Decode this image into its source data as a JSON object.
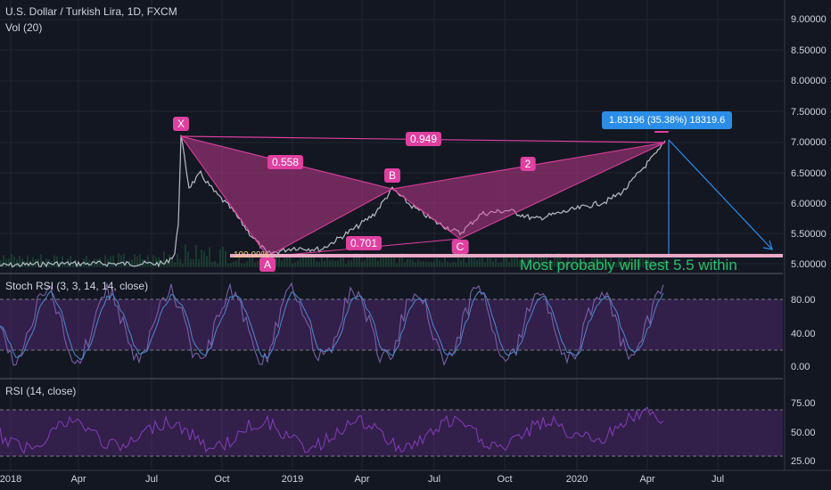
{
  "header": {
    "title": "U.S. Dollar / Turkish Lira, 1D, FXCM",
    "volume": "Vol (20)"
  },
  "panes": {
    "stoch_title": "Stoch RSI (3, 3, 14, 14, close)",
    "rsi_title": "RSI (14, close)"
  },
  "axes": {
    "price_ticks": [
      "9.00000",
      "8.50000",
      "8.00000",
      "7.50000",
      "7.00000",
      "6.50000",
      "6.00000",
      "5.50000",
      "5.00000"
    ],
    "stoch_ticks": [
      "80.00",
      "40.00",
      "0.00"
    ],
    "rsi_ticks": [
      "75.00",
      "50.00",
      "25.00"
    ],
    "time_ticks": [
      "2018",
      "Apr",
      "Jul",
      "Oct",
      "2019",
      "Apr",
      "Jul",
      "Oct",
      "2020",
      "Apr",
      "Jul"
    ]
  },
  "pattern": {
    "points": [
      "X",
      "A",
      "B",
      "C"
    ],
    "ratios": [
      "0.558",
      "0.949",
      "0.701",
      "2"
    ],
    "a_level_text": "100.00%"
  },
  "measure_callout": "1.83196 (35.38%) 18319.6",
  "note": "Most probably will test 5.5 within",
  "colors": {
    "background": "#131722",
    "pattern": "#e040a0",
    "measure": "#2a8de8",
    "note": "#26c26a",
    "stoch_k": "#7b5ea7",
    "stoch_d": "#4a8ad1",
    "rsi": "#7e3bb0"
  }
}
